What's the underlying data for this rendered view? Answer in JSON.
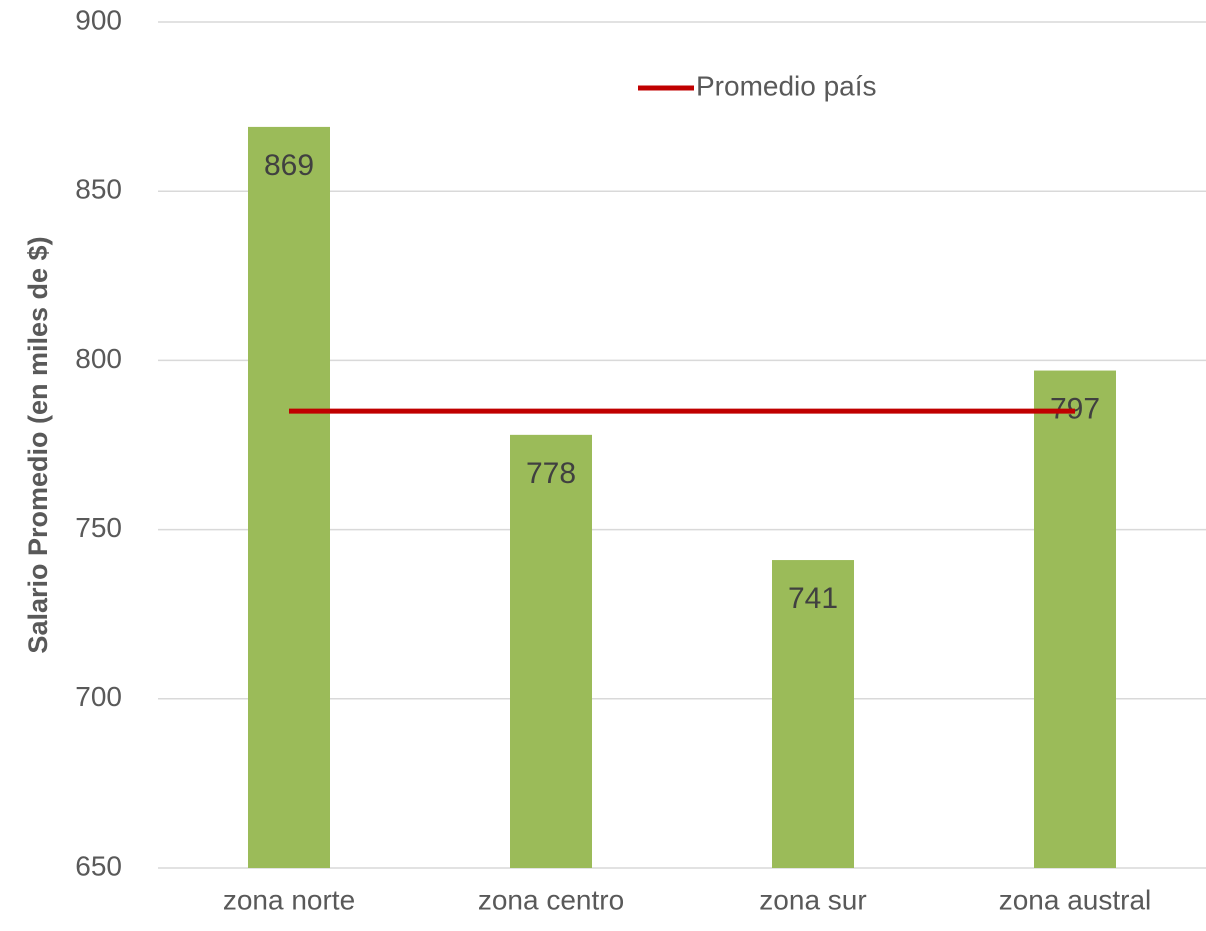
{
  "chart_data": {
    "type": "bar",
    "ylabel": "Salario Promedio (en miles de $)",
    "categories": [
      "zona norte",
      "zona centro",
      "zona sur",
      "zona austral"
    ],
    "series": [
      {
        "type": "bar",
        "color": "#9bbb59",
        "values": [
          869,
          778,
          741,
          797
        ]
      },
      {
        "type": "line",
        "name": "Promedio país",
        "color": "#c00000",
        "values": [
          785,
          785,
          785,
          785
        ]
      }
    ],
    "ylim": [
      650,
      900
    ],
    "yticks": [
      650,
      700,
      750,
      800,
      850,
      900
    ],
    "grid": true,
    "legend": "top",
    "data_labels": true
  }
}
